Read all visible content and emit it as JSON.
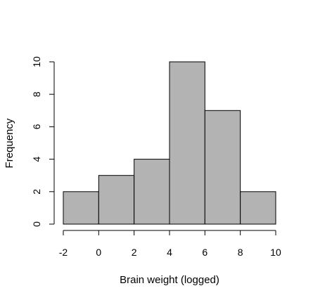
{
  "chart_data": {
    "type": "bar",
    "subtype": "histogram",
    "title": "",
    "xlabel": "Brain weight (logged)",
    "ylabel": "Frequency",
    "bins": [
      {
        "from": -2,
        "to": 0,
        "count": 2
      },
      {
        "from": 0,
        "to": 2,
        "count": 3
      },
      {
        "from": 2,
        "to": 4,
        "count": 4
      },
      {
        "from": 4,
        "to": 6,
        "count": 10
      },
      {
        "from": 6,
        "to": 8,
        "count": 7
      },
      {
        "from": 8,
        "to": 10,
        "count": 2
      }
    ],
    "xlim": [
      -2,
      10
    ],
    "ylim": [
      0,
      10
    ],
    "x_ticks": [
      "-2",
      "0",
      "2",
      "4",
      "6",
      "8",
      "10"
    ],
    "y_ticks": [
      "0",
      "2",
      "4",
      "6",
      "8",
      "10"
    ],
    "grid": false,
    "bar_color": "#b3b3b3",
    "edge_color": "#000000"
  }
}
